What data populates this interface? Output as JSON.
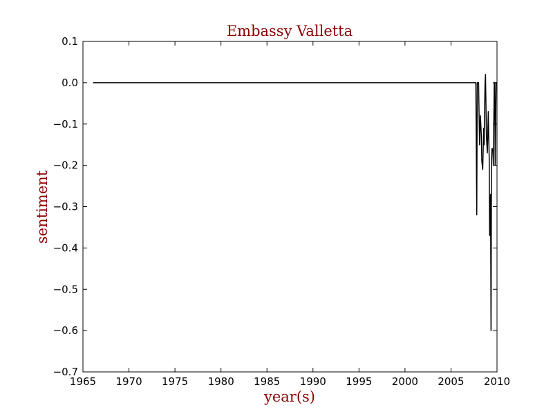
{
  "chart_data": {
    "type": "line",
    "title": "Embassy Valletta",
    "xlabel": "year(s)",
    "ylabel": "sentiment",
    "xlim": [
      1965,
      2010
    ],
    "ylim": [
      -0.7,
      0.1
    ],
    "xticks": [
      1965,
      1970,
      1975,
      1980,
      1985,
      1990,
      1995,
      2000,
      2005,
      2010
    ],
    "yticks": [
      0.1,
      0.0,
      -0.1,
      -0.2,
      -0.3,
      -0.4,
      -0.5,
      -0.6,
      -0.7
    ],
    "ytick_labels": [
      "0.1",
      "0.0",
      "−0.1",
      "−0.2",
      "−0.3",
      "−0.4",
      "−0.5",
      "−0.6",
      "−0.7"
    ],
    "grid": false,
    "colors": {
      "line": "#000000",
      "title": "#8b0000",
      "labels": "#8b0000"
    },
    "series": [
      {
        "x": [
          1966.1,
          2007.7,
          2007.8,
          2007.85,
          2007.9,
          2008.0,
          2008.1,
          2008.2,
          2008.3,
          2008.35,
          2008.45,
          2008.55,
          2008.6,
          2008.7,
          2008.75,
          2008.85,
          2008.9,
          2008.95,
          2009.05,
          2009.1,
          2009.15,
          2009.2,
          2009.3,
          2009.35,
          2009.4,
          2009.45,
          2009.55,
          2009.6,
          2009.7,
          2009.75,
          2009.8,
          2009.9,
          2010.0
        ],
        "y": [
          0.0,
          0.0,
          -0.32,
          0.0,
          0.0,
          0.0,
          -0.15,
          -0.08,
          -0.13,
          -0.19,
          -0.21,
          -0.11,
          -0.15,
          0.0,
          0.02,
          -0.13,
          -0.15,
          -0.17,
          -0.07,
          -0.13,
          -0.18,
          -0.37,
          -0.27,
          -0.6,
          -0.2,
          -0.16,
          -0.16,
          -0.2,
          0.0,
          0.0,
          -0.2,
          0.0,
          0.0
        ]
      }
    ]
  }
}
